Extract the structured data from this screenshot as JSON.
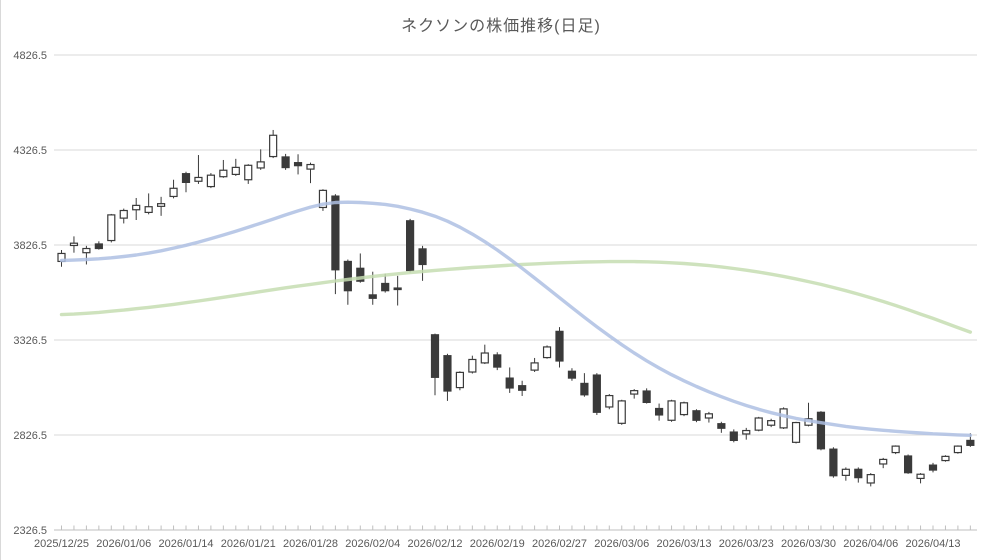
{
  "chart": {
    "title": "ネクソンの株価推移(日足)"
  },
  "chart_data": {
    "type": "candlestick",
    "title": "ネクソンの株価推移(日足)",
    "xlabel": "",
    "ylabel": "",
    "ylim": [
      2326.5,
      4826.5
    ],
    "y_ticks": [
      4826.5,
      4326.5,
      3826.5,
      3326.5,
      2826.5,
      2326.5
    ],
    "grid": "horizontal",
    "legend_position": "none",
    "x_tick_labels": [
      "2025/12/25",
      "2026/01/06",
      "2026/01/14",
      "2026/01/21",
      "2026/01/28",
      "2026/02/04",
      "2026/02/12",
      "2026/02/19",
      "2026/02/27",
      "2026/03/06",
      "2026/03/13",
      "2026/03/23",
      "2026/03/30",
      "2026/04/06",
      "2026/04/13"
    ],
    "x_label_interval": 5,
    "candles_ohlc": [
      [
        3740,
        3800,
        3712,
        3782
      ],
      [
        3824,
        3872,
        3786,
        3836
      ],
      [
        3786,
        3822,
        3724,
        3808
      ],
      [
        3832,
        3846,
        3802,
        3808
      ],
      [
        3850,
        3990,
        3840,
        3985
      ],
      [
        3968,
        4018,
        3940,
        4008
      ],
      [
        4012,
        4074,
        3958,
        4035
      ],
      [
        3998,
        4098,
        3988,
        4028
      ],
      [
        4030,
        4080,
        3980,
        4044
      ],
      [
        4082,
        4170,
        4072,
        4125
      ],
      [
        4202,
        4212,
        4104,
        4156
      ],
      [
        4162,
        4300,
        4148,
        4182
      ],
      [
        4134,
        4205,
        4126,
        4194
      ],
      [
        4186,
        4274,
        4180,
        4220
      ],
      [
        4198,
        4280,
        4190,
        4235
      ],
      [
        4170,
        4252,
        4148,
        4246
      ],
      [
        4232,
        4330,
        4222,
        4264
      ],
      [
        4292,
        4432,
        4284,
        4404
      ],
      [
        4290,
        4306,
        4222,
        4234
      ],
      [
        4260,
        4304,
        4198,
        4244
      ],
      [
        4226,
        4260,
        4152,
        4250
      ],
      [
        4024,
        4120,
        4006,
        4114
      ],
      [
        4084,
        4094,
        3568,
        3696
      ],
      [
        3740,
        3750,
        3512,
        3586
      ],
      [
        3704,
        3782,
        3628,
        3636
      ],
      [
        3564,
        3686,
        3512,
        3546
      ],
      [
        3624,
        3676,
        3576,
        3586
      ],
      [
        3600,
        3664,
        3508,
        3594
      ],
      [
        3954,
        3964,
        3682,
        3692
      ],
      [
        3806,
        3822,
        3638,
        3724
      ],
      [
        3354,
        3360,
        3036,
        3130
      ],
      [
        3244,
        3254,
        3006,
        3058
      ],
      [
        3076,
        3162,
        3062,
        3156
      ],
      [
        3158,
        3244,
        3150,
        3224
      ],
      [
        3206,
        3302,
        3200,
        3258
      ],
      [
        3248,
        3262,
        3168,
        3184
      ],
      [
        3126,
        3182,
        3048,
        3074
      ],
      [
        3086,
        3112,
        3032,
        3062
      ],
      [
        3168,
        3232,
        3158,
        3206
      ],
      [
        3234,
        3298,
        3228,
        3290
      ],
      [
        3372,
        3394,
        3182,
        3216
      ],
      [
        3162,
        3178,
        3112,
        3126
      ],
      [
        3098,
        3152,
        3028,
        3038
      ],
      [
        3142,
        3152,
        2932,
        2946
      ],
      [
        2974,
        3042,
        2962,
        3034
      ],
      [
        2888,
        3012,
        2880,
        3006
      ],
      [
        3042,
        3068,
        3018,
        3060
      ],
      [
        3058,
        3072,
        2992,
        2998
      ],
      [
        2966,
        2992,
        2902,
        2932
      ],
      [
        2904,
        3012,
        2896,
        3006
      ],
      [
        2934,
        3002,
        2926,
        2996
      ],
      [
        2954,
        2962,
        2894,
        2904
      ],
      [
        2916,
        2948,
        2892,
        2938
      ],
      [
        2886,
        2896,
        2838,
        2862
      ],
      [
        2842,
        2856,
        2788,
        2798
      ],
      [
        2832,
        2864,
        2802,
        2850
      ],
      [
        2852,
        2922,
        2846,
        2916
      ],
      [
        2878,
        2912,
        2868,
        2902
      ],
      [
        2864,
        2972,
        2858,
        2964
      ],
      [
        2788,
        2896,
        2782,
        2892
      ],
      [
        2878,
        2996,
        2872,
        2912
      ],
      [
        2946,
        2952,
        2746,
        2754
      ],
      [
        2752,
        2762,
        2602,
        2612
      ],
      [
        2614,
        2656,
        2586,
        2646
      ],
      [
        2646,
        2656,
        2576,
        2602
      ],
      [
        2574,
        2626,
        2556,
        2618
      ],
      [
        2674,
        2706,
        2652,
        2698
      ],
      [
        2734,
        2772,
        2726,
        2768
      ],
      [
        2716,
        2724,
        2622,
        2628
      ],
      [
        2598,
        2626,
        2572,
        2620
      ],
      [
        2668,
        2680,
        2630,
        2642
      ],
      [
        2692,
        2720,
        2686,
        2714
      ],
      [
        2734,
        2772,
        2728,
        2768
      ],
      [
        2798,
        2836,
        2764,
        2772
      ]
    ],
    "series": [
      {
        "name": "moving-average-short",
        "color": "#aec0e3",
        "values": [
          3745,
          3747,
          3750,
          3754,
          3759,
          3766,
          3774,
          3784,
          3796,
          3810,
          3825,
          3842,
          3860,
          3879,
          3899,
          3920,
          3941,
          3963,
          3985,
          4006,
          4026,
          4041,
          4050,
          4052,
          4050,
          4046,
          4040,
          4030,
          4016,
          3999,
          3978,
          3952,
          3920,
          3884,
          3844,
          3800,
          3753,
          3704,
          3653,
          3601,
          3549,
          3497,
          3446,
          3396,
          3348,
          3302,
          3258,
          3217,
          3179,
          3144,
          3112,
          3082,
          3054,
          3028,
          3004,
          2982,
          2962,
          2944,
          2928,
          2914,
          2902,
          2891,
          2881,
          2872,
          2864,
          2857,
          2851,
          2846,
          2841,
          2837,
          2833,
          2830,
          2827,
          2825
        ]
      },
      {
        "name": "moving-average-long",
        "color": "#c5ddb2",
        "values": [
          3460,
          3463,
          3467,
          3472,
          3478,
          3484,
          3491,
          3498,
          3506,
          3514,
          3523,
          3532,
          3541,
          3551,
          3561,
          3571,
          3581,
          3591,
          3601,
          3610,
          3619,
          3628,
          3637,
          3645,
          3653,
          3661,
          3668,
          3675,
          3681,
          3687,
          3693,
          3698,
          3703,
          3708,
          3712,
          3716,
          3720,
          3724,
          3727,
          3730,
          3733,
          3735,
          3737,
          3738,
          3739,
          3739,
          3739,
          3738,
          3736,
          3733,
          3729,
          3724,
          3718,
          3711,
          3703,
          3694,
          3684,
          3673,
          3661,
          3648,
          3634,
          3619,
          3603,
          3586,
          3568,
          3549,
          3529,
          3508,
          3486,
          3463,
          3440,
          3416,
          3392,
          3368
        ]
      }
    ],
    "colors": {
      "up_fill": "#ffffff",
      "down_fill": "#3a3a3a",
      "candle_outline": "#3a3a3a",
      "grid": "#d9d9d9",
      "axis": "#bfbfbf",
      "text": "#595959",
      "background": "#ffffff"
    }
  }
}
